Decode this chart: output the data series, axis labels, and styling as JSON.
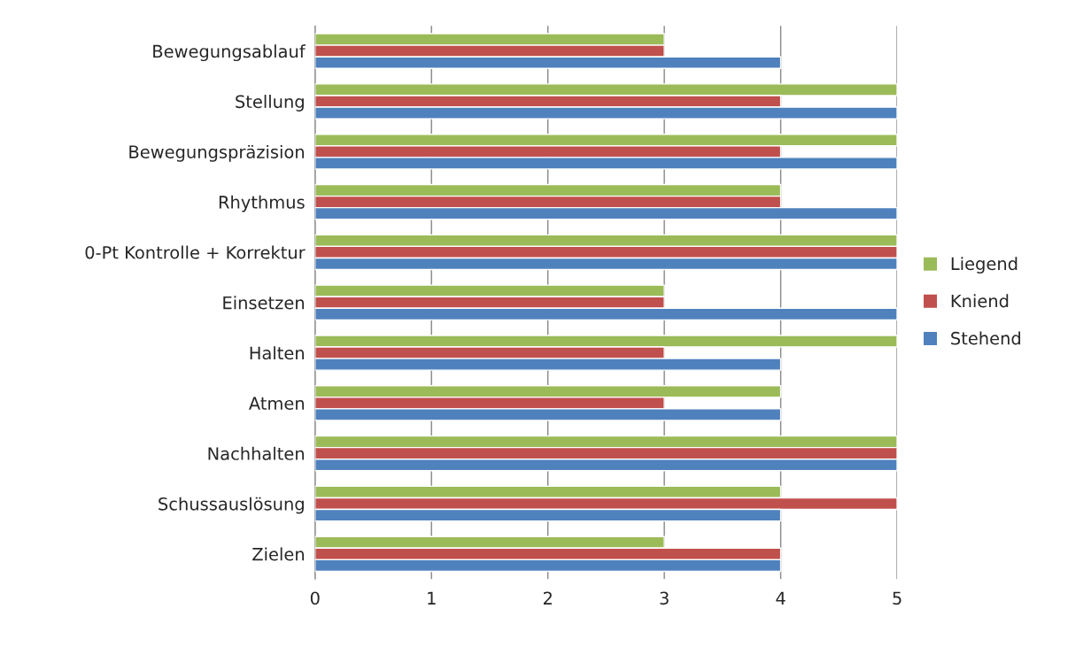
{
  "chart_data": {
    "type": "bar",
    "orientation": "horizontal",
    "categories": [
      "Bewegungsablauf",
      "Stellung",
      "Bewegungspräzision",
      "Rhythmus",
      "0-Pt Kontrolle + Korrektur",
      "Einsetzen",
      "Halten",
      "Atmen",
      "Nachhalten",
      "Schussauslösung",
      "Zielen"
    ],
    "series": [
      {
        "name": "Liegend",
        "color": "#9bbb59",
        "values": [
          3,
          5,
          5,
          4,
          5,
          3,
          5,
          4,
          5,
          4,
          3
        ]
      },
      {
        "name": "Kniend",
        "color": "#c0504d",
        "values": [
          3,
          4,
          4,
          4,
          5,
          3,
          3,
          3,
          5,
          5,
          4
        ]
      },
      {
        "name": "Stehend",
        "color": "#4f81bd",
        "values": [
          4,
          5,
          5,
          5,
          5,
          5,
          4,
          4,
          5,
          4,
          4
        ]
      }
    ],
    "xlim": [
      0,
      5
    ],
    "xticks": [
      0,
      1,
      2,
      3,
      4,
      5
    ],
    "grid": "x",
    "legend": "right"
  }
}
